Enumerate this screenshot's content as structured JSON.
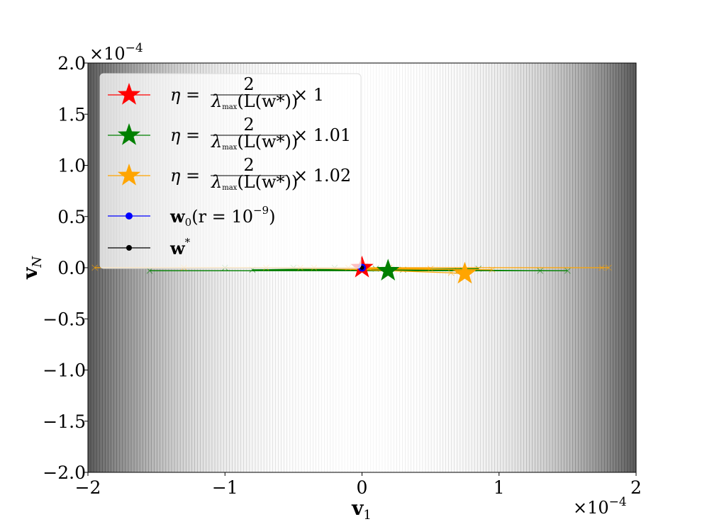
{
  "chart_data": {
    "type": "line",
    "xlabel": "v",
    "xlabel_sub": "1",
    "ylabel": "v",
    "ylabel_sub": "N",
    "x_scale_label": "×10",
    "x_scale_exp": "−4",
    "y_scale_label": "×10",
    "y_scale_exp": "−4",
    "xlim": [
      -2,
      2
    ],
    "ylim": [
      -2,
      2
    ],
    "x_ticks": [
      -2,
      -1,
      0,
      1,
      2
    ],
    "x_tick_labels": [
      "−2",
      "−1",
      "0",
      "1",
      "2"
    ],
    "y_ticks": [
      2.0,
      1.5,
      1.0,
      0.5,
      0.0,
      -0.5,
      -1.0,
      -1.5,
      -2.0
    ],
    "y_tick_labels": [
      "2.0",
      "1.5",
      "1.0",
      "0.5",
      "0.0",
      "−0.5",
      "−1.0",
      "−1.5",
      "−2.0"
    ],
    "background": "grayscale contour, dark at |x| near 2, white near x = 0",
    "grid": false,
    "legend_position": "top-left",
    "series": [
      {
        "name": "η = 2/λmax(L(w*)) × 1",
        "legend": {
          "eta": "η =",
          "num": "2",
          "den": "λ",
          "den_sub": "max",
          "den_rest": "(L(w*))",
          "factor": "× 1"
        },
        "color": "#ff0000",
        "x": [
          0.0,
          0.0
        ],
        "y": [
          0.0,
          0.0
        ],
        "final": [
          0.0,
          0.0
        ]
      },
      {
        "name": "η = 2/λmax(L(w*)) × 1.01",
        "legend": {
          "eta": "η =",
          "num": "2",
          "den": "λ",
          "den_sub": "max",
          "den_rest": "(L(w*))",
          "factor": "× 1.01"
        },
        "color": "#008000",
        "x": [
          0.0,
          0.02,
          -0.05,
          0.1,
          -0.2,
          0.3,
          -0.5,
          0.7,
          -1.0,
          1.3,
          -1.55,
          1.5,
          -0.8,
          0.85,
          0.18
        ],
        "y": [
          0.0,
          -0.005,
          0.0,
          -0.01,
          0.0,
          -0.02,
          0.0,
          -0.03,
          0.0,
          -0.03,
          -0.03,
          -0.03,
          -0.02,
          -0.01,
          -0.03
        ],
        "final": [
          0.19,
          -0.03
        ]
      },
      {
        "name": "η = 2/λmax(L(w*)) × 1.02",
        "legend": {
          "eta": "η =",
          "num": "2",
          "den": "λ",
          "den_sub": "max",
          "den_rest": "(L(w*))",
          "factor": "× 1.02"
        },
        "color": "#ffa500",
        "x": [
          0.0,
          0.05,
          -0.1,
          0.2,
          -0.35,
          0.5,
          -0.7,
          0.95,
          -1.3,
          1.75,
          -1.95,
          1.8,
          -0.45,
          0.65,
          0.75
        ],
        "y": [
          0.0,
          0.0,
          0.0,
          0.0,
          0.0,
          -0.01,
          0.0,
          -0.02,
          0.0,
          0.0,
          0.0,
          0.0,
          0.0,
          -0.05,
          -0.06
        ],
        "final": [
          0.75,
          -0.06
        ]
      },
      {
        "name": "w0(r = 10−9)",
        "legend": {
          "w": "w",
          "sub": "0",
          "rest": "(r = 10",
          "sup": "−9",
          "close": ")"
        },
        "color": "#0000ff",
        "x": [
          0.0
        ],
        "y": [
          0.0
        ]
      },
      {
        "name": "w*",
        "legend": {
          "w": "w",
          "sup": "*"
        },
        "color": "#000000",
        "x": [
          0.0
        ],
        "y": [
          0.0
        ]
      }
    ]
  }
}
